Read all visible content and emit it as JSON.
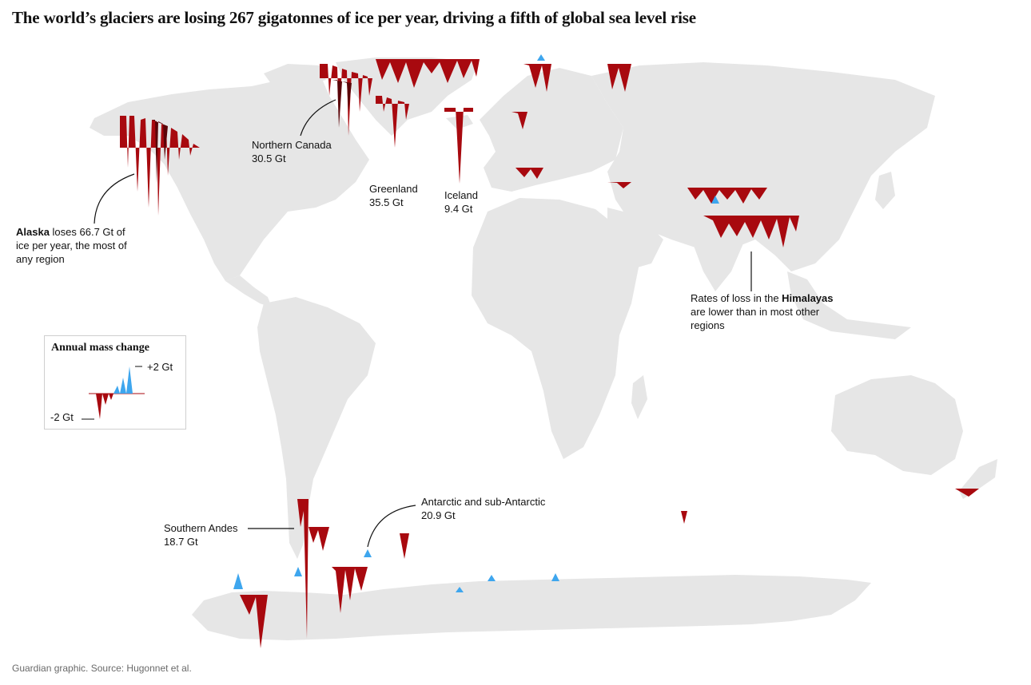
{
  "headline": "The world’s glaciers are losing 267 gigatonnes of ice per year, driving a fifth of global sea level rise",
  "annotations": {
    "alaska": {
      "bold": "Alaska",
      "rest_line1": " loses 66.7 Gt of",
      "line2": "ice per year, the most of",
      "line3": "any region"
    },
    "northern_canada": {
      "name": "Northern Canada",
      "value": "30.5 Gt"
    },
    "greenland": {
      "name": "Greenland",
      "value": "35.5 Gt"
    },
    "iceland": {
      "name": "Iceland",
      "value": "9.4 Gt"
    },
    "himalayas": {
      "line1_pre": "Rates of loss in the ",
      "bold": "Himalayas",
      "line2": "are lower than in most other",
      "line3": "regions"
    },
    "southern_andes": {
      "name": "Southern Andes",
      "value": "18.7 Gt"
    },
    "antarctic": {
      "name": "Antarctic and sub-Antarctic",
      "value": "20.9 Gt"
    }
  },
  "legend": {
    "title": "Annual mass change",
    "max_label": "+2 Gt",
    "min_label": "-2 Gt"
  },
  "colors": {
    "land": "#e6e6e6",
    "loss": "#a8090f",
    "gain": "#3ea6ee"
  },
  "source": "Guardian graphic. Source: Hugonnet et al."
}
